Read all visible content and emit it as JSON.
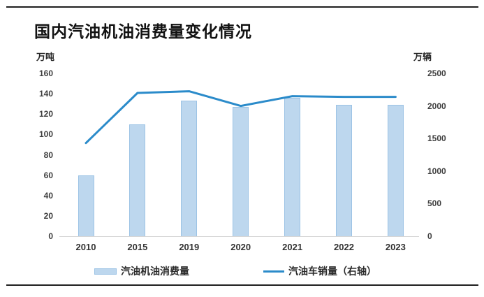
{
  "title": "国内汽油机油消费量变化情况",
  "chart_data": {
    "type": "bar",
    "title": "国内汽油机油消费量变化情况",
    "categories": [
      "2010",
      "2015",
      "2019",
      "2020",
      "2021",
      "2022",
      "2023"
    ],
    "series": [
      {
        "name": "汽油机油消费量",
        "type": "bar",
        "axis": "left",
        "values": [
          60,
          110,
          133,
          127,
          136,
          129,
          129
        ],
        "fill_color": "#bdd7ee",
        "border_color": "#9cc3e5"
      },
      {
        "name": "汽油车销量（右轴）",
        "type": "line",
        "axis": "right",
        "values": [
          1430,
          2200,
          2225,
          2000,
          2150,
          2140,
          2140
        ],
        "line_color": "#2b8bca"
      }
    ],
    "left_axis": {
      "unit": "万吨",
      "min": 0,
      "max": 160,
      "step": 20,
      "ticks": [
        "160",
        "140",
        "120",
        "100",
        "80",
        "60",
        "40",
        "20",
        "0"
      ]
    },
    "right_axis": {
      "unit": "万辆",
      "min": 0,
      "max": 2500,
      "step": 500,
      "ticks": [
        "2500",
        "2000",
        "1500",
        "1000",
        "500",
        "0"
      ]
    },
    "grid": false,
    "legend_position": "bottom"
  }
}
